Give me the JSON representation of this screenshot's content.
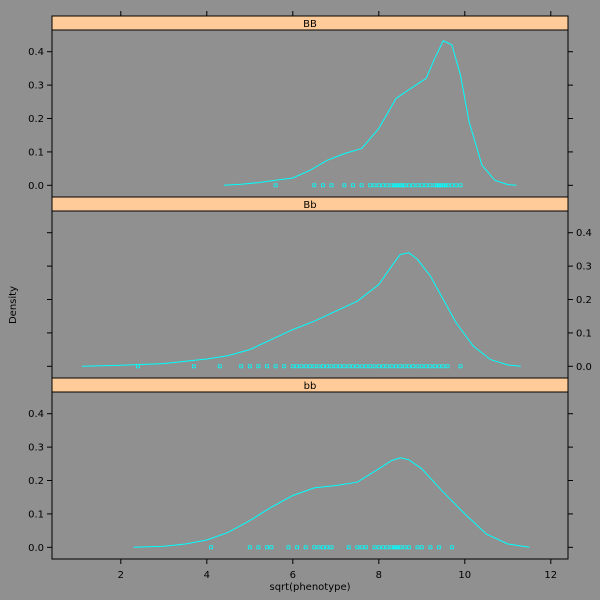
{
  "chart_data": {
    "type": "density",
    "xlabel": "sqrt(phenotype)",
    "ylabel": "Density",
    "xlim": [
      0.4,
      12.4
    ],
    "ylim": [
      -0.035,
      0.465
    ],
    "x_ticks": [
      2,
      4,
      6,
      8,
      10,
      12
    ],
    "y_ticks": [
      0.0,
      0.1,
      0.2,
      0.3,
      0.4
    ],
    "line_color": "#00FFFF",
    "strip_color": "#FFCC99",
    "panels": [
      {
        "label": "BB",
        "y_axis_side": "left",
        "curve": [
          [
            4.4,
            0.0
          ],
          [
            4.8,
            0.003
          ],
          [
            5.2,
            0.008
          ],
          [
            5.6,
            0.015
          ],
          [
            6.0,
            0.022
          ],
          [
            6.4,
            0.045
          ],
          [
            6.8,
            0.075
          ],
          [
            7.2,
            0.095
          ],
          [
            7.6,
            0.11
          ],
          [
            8.0,
            0.17
          ],
          [
            8.4,
            0.26
          ],
          [
            8.8,
            0.295
          ],
          [
            9.1,
            0.32
          ],
          [
            9.3,
            0.38
          ],
          [
            9.5,
            0.433
          ],
          [
            9.7,
            0.42
          ],
          [
            9.9,
            0.33
          ],
          [
            10.1,
            0.19
          ],
          [
            10.4,
            0.06
          ],
          [
            10.7,
            0.015
          ],
          [
            11.0,
            0.002
          ],
          [
            11.2,
            0.0
          ]
        ],
        "rug": [
          5.6,
          6.5,
          6.7,
          6.9,
          7.2,
          7.4,
          7.6,
          7.8,
          7.9,
          8.0,
          8.1,
          8.2,
          8.3,
          8.35,
          8.4,
          8.45,
          8.5,
          8.55,
          8.6,
          8.7,
          8.8,
          8.9,
          9.0,
          9.1,
          9.2,
          9.3,
          9.35,
          9.4,
          9.45,
          9.5,
          9.55,
          9.6,
          9.7,
          9.8,
          9.9
        ]
      },
      {
        "label": "Bb",
        "y_axis_side": "right",
        "curve": [
          [
            1.1,
            0.0
          ],
          [
            2.0,
            0.003
          ],
          [
            3.0,
            0.008
          ],
          [
            3.5,
            0.015
          ],
          [
            4.0,
            0.022
          ],
          [
            4.5,
            0.032
          ],
          [
            5.0,
            0.05
          ],
          [
            5.5,
            0.08
          ],
          [
            6.0,
            0.11
          ],
          [
            6.5,
            0.135
          ],
          [
            7.0,
            0.165
          ],
          [
            7.5,
            0.195
          ],
          [
            8.0,
            0.245
          ],
          [
            8.3,
            0.3
          ],
          [
            8.5,
            0.335
          ],
          [
            8.7,
            0.34
          ],
          [
            8.9,
            0.32
          ],
          [
            9.2,
            0.27
          ],
          [
            9.5,
            0.2
          ],
          [
            9.8,
            0.13
          ],
          [
            10.2,
            0.06
          ],
          [
            10.6,
            0.02
          ],
          [
            11.0,
            0.004
          ],
          [
            11.3,
            0.0
          ]
        ],
        "rug": [
          2.4,
          3.7,
          4.3,
          4.8,
          5.0,
          5.2,
          5.4,
          5.6,
          5.8,
          6.0,
          6.1,
          6.2,
          6.3,
          6.4,
          6.5,
          6.6,
          6.7,
          6.8,
          6.9,
          7.0,
          7.1,
          7.2,
          7.3,
          7.4,
          7.5,
          7.6,
          7.7,
          7.8,
          7.9,
          8.0,
          8.1,
          8.2,
          8.3,
          8.4,
          8.5,
          8.6,
          8.7,
          8.8,
          8.9,
          9.0,
          9.1,
          9.2,
          9.3,
          9.4,
          9.5,
          9.6,
          9.9
        ]
      },
      {
        "label": "bb",
        "y_axis_side": "left",
        "curve": [
          [
            2.3,
            0.0
          ],
          [
            3.0,
            0.003
          ],
          [
            3.5,
            0.01
          ],
          [
            4.0,
            0.022
          ],
          [
            4.5,
            0.045
          ],
          [
            5.0,
            0.08
          ],
          [
            5.5,
            0.12
          ],
          [
            6.0,
            0.155
          ],
          [
            6.5,
            0.178
          ],
          [
            7.0,
            0.185
          ],
          [
            7.5,
            0.195
          ],
          [
            8.0,
            0.235
          ],
          [
            8.3,
            0.26
          ],
          [
            8.5,
            0.268
          ],
          [
            8.7,
            0.262
          ],
          [
            9.0,
            0.235
          ],
          [
            9.5,
            0.165
          ],
          [
            10.0,
            0.1
          ],
          [
            10.5,
            0.04
          ],
          [
            11.0,
            0.01
          ],
          [
            11.5,
            0.0
          ]
        ],
        "rug": [
          4.1,
          5.0,
          5.2,
          5.4,
          5.5,
          5.9,
          6.1,
          6.3,
          6.5,
          6.6,
          6.7,
          6.8,
          6.9,
          7.3,
          7.5,
          7.6,
          7.7,
          7.9,
          8.0,
          8.1,
          8.2,
          8.3,
          8.35,
          8.4,
          8.45,
          8.5,
          8.6,
          8.7,
          8.9,
          9.0,
          9.2,
          9.4,
          9.7
        ]
      }
    ]
  }
}
